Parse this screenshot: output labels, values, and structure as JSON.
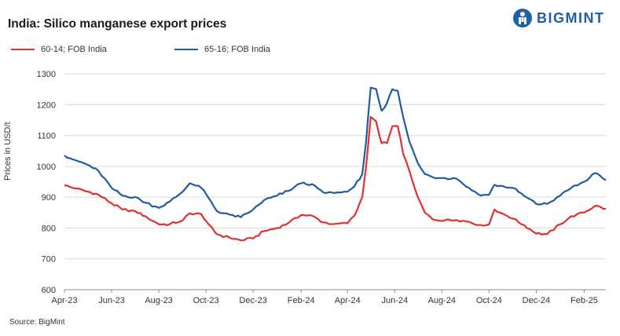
{
  "page": {
    "title": "India: Silico manganese export prices",
    "brand": "BIGMINT",
    "source": "Source: BigMint"
  },
  "colors": {
    "series_1": "#e0302f",
    "series_2": "#1f5aa5",
    "grid": "#d9d9d9",
    "brand": "#1f5fa8"
  },
  "icons": {
    "logo": "bigmint-logo-icon"
  },
  "chart_data": {
    "type": "line",
    "title": "India: Silico manganese export prices",
    "xlabel": "",
    "ylabel": "Prices in USD/t",
    "ylim": [
      600,
      1300
    ],
    "yticks": [
      600,
      700,
      800,
      900,
      1000,
      1100,
      1200,
      1300
    ],
    "xlim": [
      "2023-04-01",
      "2025-03-01"
    ],
    "x_tick_labels": [
      "Apr-23",
      "Jun-23",
      "Aug-23",
      "Oct-23",
      "Dec-23",
      "Feb-24",
      "Apr-24",
      "Jun-24",
      "Aug-24",
      "Oct-24",
      "Dec-24",
      "Feb-25"
    ],
    "x_tick_dates": [
      "2023-04-01",
      "2023-06-01",
      "2023-08-01",
      "2023-10-01",
      "2023-12-01",
      "2024-02-01",
      "2024-04-01",
      "2024-06-01",
      "2024-08-01",
      "2024-10-01",
      "2024-12-01",
      "2025-02-01"
    ],
    "grid": true,
    "legend_position": "top-left",
    "series": [
      {
        "name": "60-14; FOB India",
        "color": "#e0302f",
        "points": [
          [
            "2023-04-01",
            938
          ],
          [
            "2023-04-15",
            928
          ],
          [
            "2023-05-01",
            918
          ],
          [
            "2023-05-15",
            908
          ],
          [
            "2023-06-01",
            880
          ],
          [
            "2023-06-15",
            860
          ],
          [
            "2023-07-01",
            855
          ],
          [
            "2023-07-15",
            838
          ],
          [
            "2023-08-01",
            812
          ],
          [
            "2023-08-15",
            812
          ],
          [
            "2023-09-01",
            825
          ],
          [
            "2023-09-10",
            848
          ],
          [
            "2023-09-25",
            845
          ],
          [
            "2023-10-05",
            810
          ],
          [
            "2023-10-15",
            780
          ],
          [
            "2023-11-01",
            768
          ],
          [
            "2023-11-15",
            760
          ],
          [
            "2023-12-01",
            766
          ],
          [
            "2023-12-15",
            790
          ],
          [
            "2024-01-01",
            800
          ],
          [
            "2024-01-15",
            815
          ],
          [
            "2024-02-01",
            842
          ],
          [
            "2024-02-15",
            840
          ],
          [
            "2024-03-01",
            818
          ],
          [
            "2024-03-15",
            813
          ],
          [
            "2024-04-01",
            815
          ],
          [
            "2024-04-10",
            840
          ],
          [
            "2024-04-20",
            900
          ],
          [
            "2024-04-25",
            1000
          ],
          [
            "2024-05-01",
            1160
          ],
          [
            "2024-05-08",
            1145
          ],
          [
            "2024-05-15",
            1075
          ],
          [
            "2024-05-22",
            1075
          ],
          [
            "2024-05-29",
            1130
          ],
          [
            "2024-06-05",
            1130
          ],
          [
            "2024-06-12",
            1040
          ],
          [
            "2024-06-20",
            985
          ],
          [
            "2024-07-01",
            900
          ],
          [
            "2024-07-10",
            850
          ],
          [
            "2024-07-20",
            828
          ],
          [
            "2024-08-05",
            825
          ],
          [
            "2024-08-20",
            826
          ],
          [
            "2024-09-05",
            820
          ],
          [
            "2024-09-20",
            810
          ],
          [
            "2024-10-01",
            812
          ],
          [
            "2024-10-08",
            860
          ],
          [
            "2024-10-20",
            845
          ],
          [
            "2024-11-01",
            830
          ],
          [
            "2024-11-15",
            810
          ],
          [
            "2024-12-01",
            782
          ],
          [
            "2024-12-15",
            780
          ],
          [
            "2025-01-01",
            812
          ],
          [
            "2025-01-15",
            838
          ],
          [
            "2025-02-01",
            850
          ],
          [
            "2025-02-15",
            872
          ],
          [
            "2025-03-01",
            862
          ]
        ]
      },
      {
        "name": "65-16; FOB India",
        "color": "#1f5aa5",
        "points": [
          [
            "2023-04-01",
            1035
          ],
          [
            "2023-04-15",
            1020
          ],
          [
            "2023-05-01",
            1005
          ],
          [
            "2023-05-15",
            985
          ],
          [
            "2023-06-01",
            930
          ],
          [
            "2023-06-15",
            905
          ],
          [
            "2023-07-01",
            900
          ],
          [
            "2023-07-15",
            882
          ],
          [
            "2023-08-01",
            865
          ],
          [
            "2023-08-15",
            885
          ],
          [
            "2023-09-01",
            918
          ],
          [
            "2023-09-10",
            945
          ],
          [
            "2023-09-25",
            930
          ],
          [
            "2023-10-05",
            895
          ],
          [
            "2023-10-15",
            855
          ],
          [
            "2023-11-01",
            843
          ],
          [
            "2023-11-15",
            835
          ],
          [
            "2023-12-01",
            860
          ],
          [
            "2023-12-15",
            890
          ],
          [
            "2024-01-01",
            905
          ],
          [
            "2024-01-15",
            920
          ],
          [
            "2024-02-01",
            945
          ],
          [
            "2024-02-15",
            942
          ],
          [
            "2024-03-01",
            915
          ],
          [
            "2024-03-15",
            913
          ],
          [
            "2024-04-01",
            918
          ],
          [
            "2024-04-10",
            935
          ],
          [
            "2024-04-20",
            975
          ],
          [
            "2024-04-25",
            1080
          ],
          [
            "2024-05-01",
            1255
          ],
          [
            "2024-05-08",
            1250
          ],
          [
            "2024-05-15",
            1180
          ],
          [
            "2024-05-22",
            1205
          ],
          [
            "2024-05-29",
            1250
          ],
          [
            "2024-06-05",
            1245
          ],
          [
            "2024-06-12",
            1160
          ],
          [
            "2024-06-20",
            1080
          ],
          [
            "2024-07-01",
            1010
          ],
          [
            "2024-07-10",
            975
          ],
          [
            "2024-07-20",
            965
          ],
          [
            "2024-08-05",
            962
          ],
          [
            "2024-08-20",
            960
          ],
          [
            "2024-09-05",
            930
          ],
          [
            "2024-09-20",
            905
          ],
          [
            "2024-10-01",
            908
          ],
          [
            "2024-10-08",
            940
          ],
          [
            "2024-10-20",
            935
          ],
          [
            "2024-11-01",
            930
          ],
          [
            "2024-11-15",
            905
          ],
          [
            "2024-12-01",
            878
          ],
          [
            "2024-12-15",
            878
          ],
          [
            "2025-01-01",
            905
          ],
          [
            "2025-01-15",
            930
          ],
          [
            "2025-02-01",
            950
          ],
          [
            "2025-02-15",
            978
          ],
          [
            "2025-03-01",
            955
          ]
        ]
      }
    ]
  }
}
